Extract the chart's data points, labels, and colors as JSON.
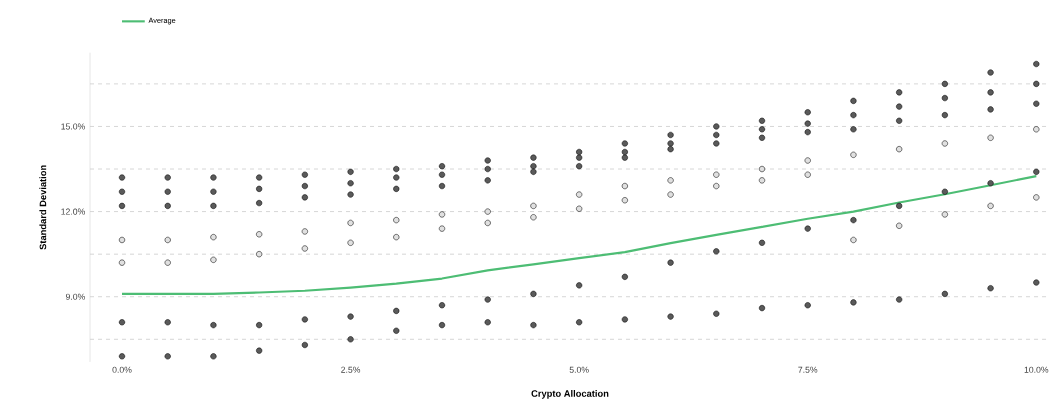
{
  "chart_data": {
    "type": "scatter",
    "xlabel": "Crypto Allocation",
    "ylabel": "Standard Deviation",
    "xlim": [
      -0.35,
      10.15
    ],
    "ylim": [
      6.7,
      17.6
    ],
    "xticks": [
      {
        "value": 0,
        "label": "0.0%"
      },
      {
        "value": 2.5,
        "label": "2.5%"
      },
      {
        "value": 5,
        "label": "5.0%"
      },
      {
        "value": 7.5,
        "label": "7.5%"
      },
      {
        "value": 10,
        "label": "10.0%"
      }
    ],
    "yticks": [
      {
        "value": 7.5,
        "label": null
      },
      {
        "value": 9,
        "label": "9.0%"
      },
      {
        "value": 10.5,
        "label": null
      },
      {
        "value": 12,
        "label": "12.0%"
      },
      {
        "value": 13.5,
        "label": null
      },
      {
        "value": 15,
        "label": "15.0%"
      },
      {
        "value": 16.5,
        "label": null
      }
    ],
    "grid": "y",
    "legend": "top left",
    "marker": "circle",
    "series": [
      {
        "color": "#e0e0e0",
        "x": [
          0,
          0,
          0.5,
          0.5,
          1,
          1,
          1.5,
          1.5,
          2,
          2,
          2.5,
          2.5,
          3,
          3,
          3.5,
          3.5,
          4,
          4,
          4.5,
          4.5,
          5,
          5,
          5.5,
          5.5,
          6,
          6,
          6.5,
          6.5,
          7,
          7,
          7.5,
          7.5,
          8,
          8,
          8.5,
          8.5,
          9,
          9,
          9.5,
          9.5,
          10,
          10
        ],
        "values": [
          11.0,
          10.2,
          11.0,
          10.2,
          11.1,
          10.3,
          11.2,
          10.5,
          11.3,
          10.7,
          11.6,
          10.9,
          11.7,
          11.1,
          11.9,
          11.4,
          12.0,
          11.6,
          12.2,
          11.8,
          12.6,
          12.1,
          12.9,
          12.4,
          13.1,
          12.6,
          13.3,
          12.9,
          13.5,
          13.1,
          13.8,
          13.3,
          14.0,
          11.0,
          14.2,
          11.5,
          14.4,
          11.9,
          14.6,
          12.2,
          14.9,
          12.5
        ]
      },
      {
        "color": "#5a5a5a",
        "x": [
          0,
          0,
          0,
          0,
          0,
          0.5,
          0.5,
          0.5,
          0.5,
          0.5,
          1,
          1,
          1,
          1,
          1,
          1.5,
          1.5,
          1.5,
          1.5,
          1.5,
          2,
          2,
          2,
          2,
          2,
          2.5,
          2.5,
          2.5,
          2.5,
          2.5,
          3,
          3,
          3,
          3,
          3,
          3.5,
          3.5,
          3.5,
          3.5,
          3.5,
          4,
          4,
          4,
          4,
          4,
          4.5,
          4.5,
          4.5,
          4.5,
          4.5,
          5,
          5,
          5,
          5,
          5,
          5.5,
          5.5,
          5.5,
          5.5,
          5.5,
          6,
          6,
          6,
          6,
          6,
          6.5,
          6.5,
          6.5,
          6.5,
          6.5,
          7,
          7,
          7,
          7,
          7,
          7.5,
          7.5,
          7.5,
          7.5,
          7.5,
          8,
          8,
          8,
          8,
          8,
          8.5,
          8.5,
          8.5,
          8.5,
          8.5,
          9,
          9,
          9,
          9,
          9,
          9.5,
          9.5,
          9.5,
          9.5,
          9.5,
          10,
          10,
          10,
          10,
          10
        ],
        "values": [
          13.2,
          12.7,
          12.2,
          8.1,
          6.9,
          13.2,
          12.7,
          12.2,
          8.1,
          6.9,
          13.2,
          12.7,
          12.2,
          8.0,
          6.9,
          13.2,
          12.8,
          12.3,
          8.0,
          7.1,
          13.3,
          12.9,
          12.5,
          8.2,
          7.3,
          13.4,
          13.0,
          12.6,
          8.3,
          7.5,
          13.5,
          13.2,
          12.8,
          8.5,
          7.8,
          13.6,
          13.3,
          12.9,
          8.7,
          8.0,
          13.8,
          13.5,
          13.1,
          8.9,
          8.1,
          13.9,
          13.6,
          13.4,
          9.1,
          8.0,
          14.1,
          13.9,
          13.6,
          9.4,
          8.1,
          14.4,
          14.1,
          13.9,
          9.7,
          8.2,
          14.7,
          14.4,
          14.2,
          10.2,
          8.3,
          15.0,
          14.7,
          14.4,
          10.6,
          8.4,
          15.2,
          14.9,
          14.6,
          10.9,
          8.6,
          15.5,
          15.1,
          14.8,
          11.4,
          8.7,
          15.9,
          15.4,
          14.9,
          11.7,
          8.8,
          16.2,
          15.7,
          15.2,
          12.2,
          8.9,
          16.5,
          16.0,
          15.4,
          12.7,
          9.1,
          16.9,
          16.2,
          15.6,
          13.0,
          9.3,
          17.2,
          16.5,
          15.8,
          13.4,
          9.5
        ]
      },
      {
        "type": "line",
        "name": "Average",
        "color": "#4dbd74",
        "marker": "none",
        "x": [
          0,
          0.5,
          1,
          1.5,
          2,
          2.5,
          3,
          3.5,
          4,
          4.5,
          5,
          5.5,
          6,
          6.5,
          7,
          7.5,
          8,
          8.5,
          9,
          9.5,
          10
        ],
        "values": [
          9.1,
          9.1,
          9.1,
          9.15,
          9.21,
          9.32,
          9.46,
          9.64,
          9.93,
          10.14,
          10.36,
          10.57,
          10.89,
          11.18,
          11.46,
          11.75,
          12.0,
          12.32,
          12.61,
          12.93,
          13.25
        ]
      }
    ]
  }
}
